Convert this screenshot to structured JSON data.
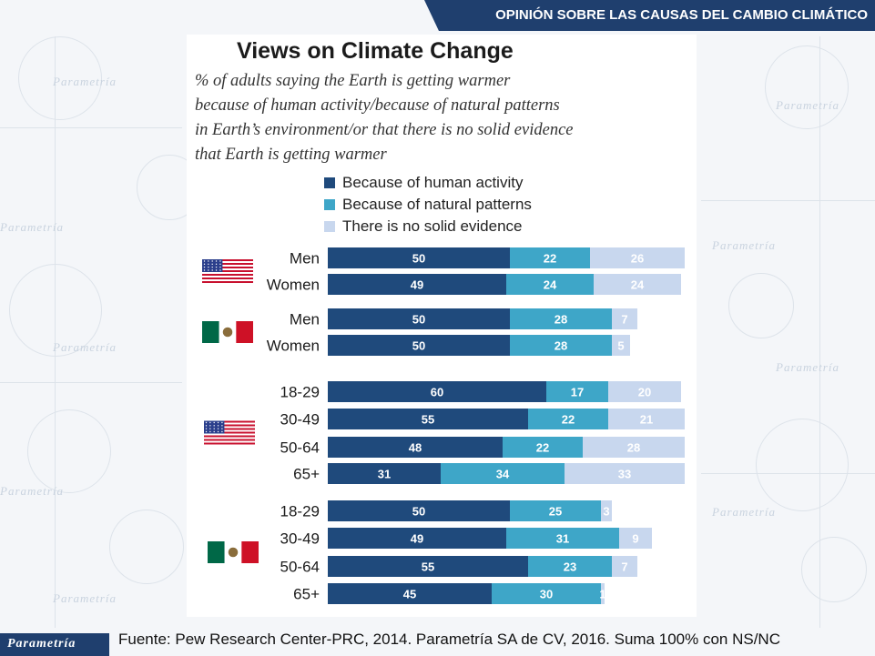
{
  "header": {
    "title": "OPINIÓN SOBRE LAS CAUSAS DEL CAMBIO CLIMÁTICO"
  },
  "watermark": {
    "brand": "Parametría"
  },
  "colors": {
    "human": "#1f4a7c",
    "natural": "#3ea6c8",
    "no_evidence": "#c8d7ee",
    "header": "#1f3f6e"
  },
  "flags": {
    "us": "us-flag-icon",
    "mx": "mexico-flag-icon"
  },
  "chart_data": {
    "type": "bar",
    "orientation": "horizontal",
    "stacked": true,
    "title": "Views on Climate Change",
    "subtitle_lines": [
      "% of  adults saying the Earth is getting warmer",
      "because of human activity/because of natural patterns",
      "in Earth’s environment/or that there is no solid evidence",
      "that Earth is getting warmer"
    ],
    "series": [
      {
        "name": "Because of human activity"
      },
      {
        "name": "Because of natural patterns"
      },
      {
        "name": "There is no solid evidence"
      }
    ],
    "legend": "top",
    "xlim": [
      0,
      100
    ],
    "groups": [
      {
        "country": "us",
        "rows": [
          {
            "label": "Men",
            "values": [
              50,
              22,
              26
            ]
          },
          {
            "label": "Women",
            "values": [
              49,
              24,
              24
            ]
          }
        ]
      },
      {
        "country": "mx",
        "rows": [
          {
            "label": "Men",
            "values": [
              50,
              28,
              7
            ]
          },
          {
            "label": "Women",
            "values": [
              50,
              28,
              5
            ]
          }
        ]
      },
      {
        "country": "us",
        "rows": [
          {
            "label": "18-29",
            "values": [
              60,
              17,
              20
            ]
          },
          {
            "label": "30-49",
            "values": [
              55,
              22,
              21
            ]
          },
          {
            "label": "50-64",
            "values": [
              48,
              22,
              28
            ]
          },
          {
            "label": "65+",
            "values": [
              31,
              34,
              33
            ]
          }
        ]
      },
      {
        "country": "mx",
        "rows": [
          {
            "label": "18-29",
            "values": [
              50,
              25,
              3
            ]
          },
          {
            "label": "30-49",
            "values": [
              49,
              31,
              9
            ]
          },
          {
            "label": "50-64",
            "values": [
              55,
              23,
              7
            ]
          },
          {
            "label": "65+",
            "values": [
              45,
              30,
              1
            ]
          }
        ]
      }
    ]
  },
  "footer": {
    "logo": "Parametría",
    "source": "Fuente: Pew Research Center-PRC, 2014. Parametría SA de CV, 2016. Suma 100% con NS/NC"
  }
}
